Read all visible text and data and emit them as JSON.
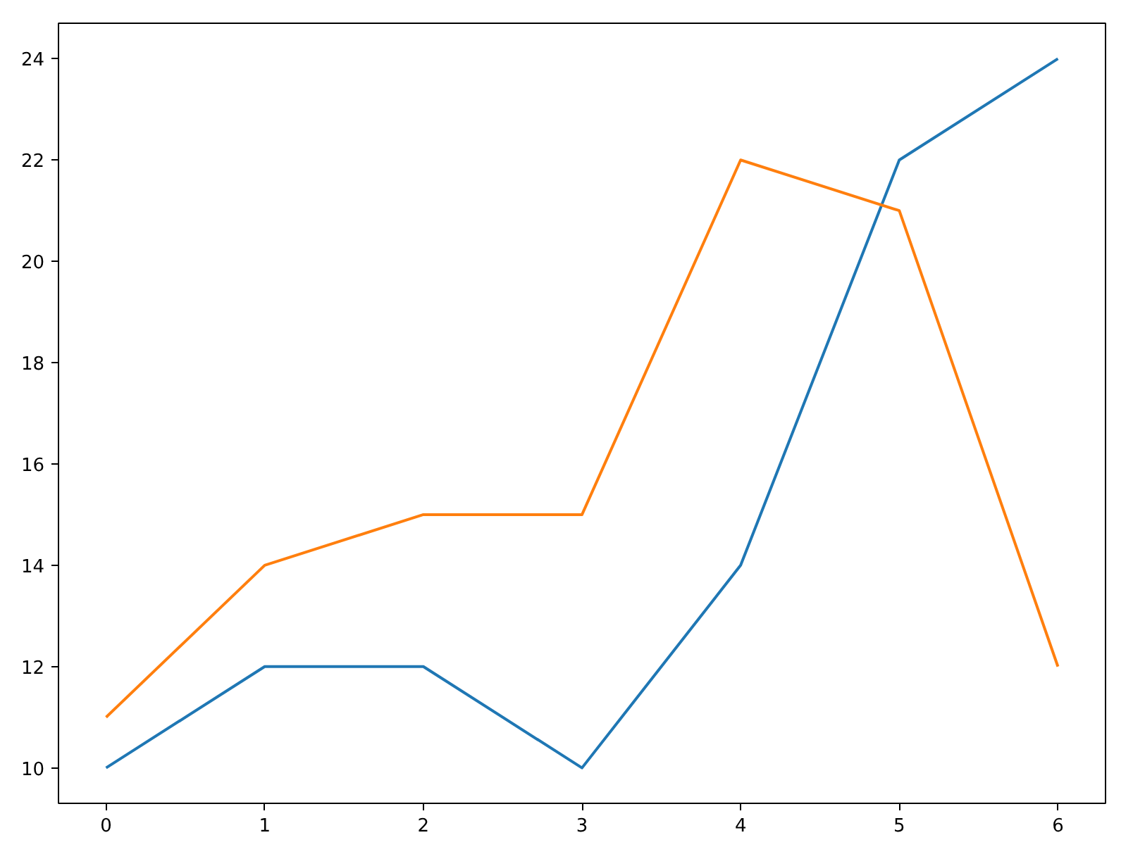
{
  "chart_data": {
    "type": "line",
    "x": [
      0,
      1,
      2,
      3,
      4,
      5,
      6
    ],
    "series": [
      {
        "color": "#1f77b4",
        "values": [
          10,
          12,
          12,
          10,
          14,
          22,
          24
        ]
      },
      {
        "color": "#ff7f0e",
        "values": [
          11,
          14,
          15,
          15,
          22,
          21,
          12
        ]
      }
    ],
    "xlim": [
      -0.3,
      6.3
    ],
    "ylim": [
      9.3,
      24.7
    ],
    "xticks": [
      0,
      1,
      2,
      3,
      4,
      5,
      6
    ],
    "yticks": [
      10,
      12,
      14,
      16,
      18,
      20,
      22,
      24
    ]
  }
}
